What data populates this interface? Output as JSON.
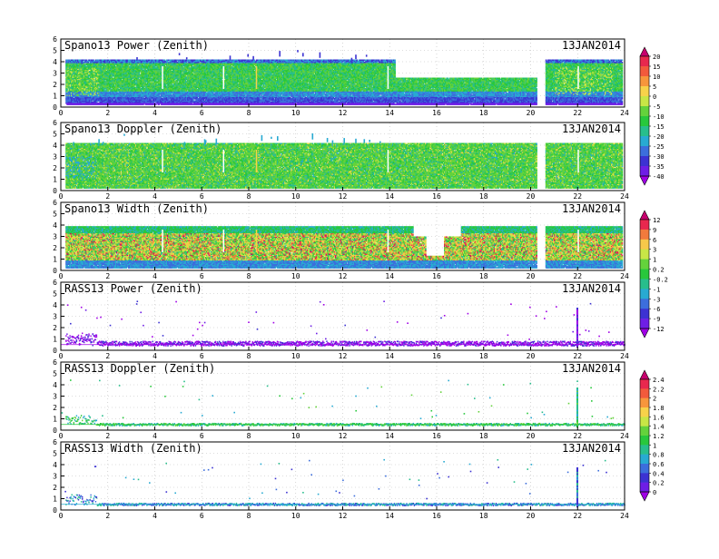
{
  "chart_data": {
    "type": "heatmap",
    "xlim": [
      0,
      24
    ],
    "x_ticks": [
      "0",
      "2",
      "4",
      "6",
      "8",
      "10",
      "12",
      "14",
      "16",
      "18",
      "20",
      "22",
      "24"
    ],
    "ylim": [
      0,
      6
    ],
    "y_ticks": [
      "0",
      "1",
      "2",
      "3",
      "4",
      "5",
      "6"
    ],
    "grid": true,
    "panels": [
      {
        "title": "Spano13 Power (Zenith)",
        "date": "13JAN2014",
        "field": "power",
        "max_height": 4.2,
        "colorbar": 0
      },
      {
        "title": "Spano13 Doppler (Zenith)",
        "date": "13JAN2014",
        "field": "doppler",
        "max_height": 4.2,
        "colorbar": 0
      },
      {
        "title": "Spano13 Width (Zenith)",
        "date": "13JAN2014",
        "field": "width",
        "max_height": 3.9,
        "colorbar": 1
      },
      {
        "title": "RASS13 Power (Zenith)",
        "date": "13JAN2014",
        "field": "rass_power",
        "colorbar": 1
      },
      {
        "title": "RASS13 Doppler (Zenith)",
        "date": "13JAN2014",
        "field": "rass_doppler",
        "colorbar": 2
      },
      {
        "title": "RASS13 Width (Zenith)",
        "date": "13JAN2014",
        "field": "rass_width",
        "colorbar": 2
      }
    ],
    "colorbars": [
      {
        "labels": [
          "20",
          "15",
          "10",
          "5",
          "0",
          "-5",
          "-10",
          "-15",
          "-20",
          "-25",
          "-30",
          "-35",
          "-40"
        ],
        "colors": [
          "#c8006e",
          "#e8284e",
          "#f25a3c",
          "#f7963c",
          "#f7d24a",
          "#c8e646",
          "#64d23c",
          "#28c83c",
          "#28be8c",
          "#28aad2",
          "#3c6edc",
          "#3c32d2",
          "#6e1ee6",
          "#a000e6"
        ]
      },
      {
        "labels": [
          "12",
          "9",
          "6",
          "3",
          "1",
          "0.2",
          "-0.2",
          "-1",
          "-3",
          "-6",
          "-9",
          "-12"
        ],
        "colors": [
          "#c8006e",
          "#e8284e",
          "#f27a3c",
          "#f7c84a",
          "#c8e646",
          "#64d23c",
          "#28c83c",
          "#28be8c",
          "#28aad2",
          "#3c6edc",
          "#3c32d2",
          "#6e1ee6",
          "#a000e6"
        ]
      },
      {
        "labels": [
          "2.4",
          "2.2",
          "2",
          "1.8",
          "1.6",
          "1.4",
          "1.2",
          "1",
          "0.8",
          "0.6",
          "0.4",
          "0.2",
          "0"
        ],
        "colors": [
          "#c8006e",
          "#e8284e",
          "#f25a3c",
          "#f7963c",
          "#f7d24a",
          "#c8e646",
          "#64d23c",
          "#28c83c",
          "#28be8c",
          "#28aad2",
          "#3c6edc",
          "#3c32d2",
          "#6e1ee6",
          "#a000e6"
        ]
      }
    ]
  }
}
